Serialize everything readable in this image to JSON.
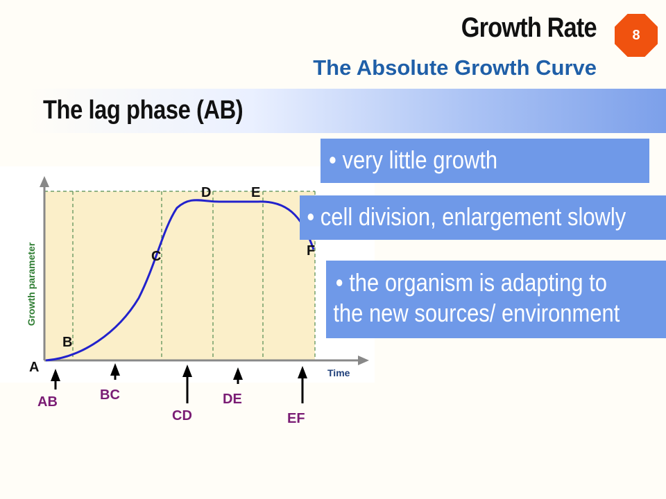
{
  "slide": {
    "title": "Growth Rate",
    "subtitle": "The Absolute Growth Curve",
    "page_number": "8",
    "badge_color": "#f0520f"
  },
  "section": {
    "heading": "The lag phase (AB)"
  },
  "bullets": [
    {
      "text": "• very little growth"
    },
    {
      "text": "• cell division, enlargement slowly"
    },
    {
      "lines": [
        "• the organism is adapting to",
        "the new sources/ environment"
      ]
    }
  ],
  "diagram": {
    "y_axis_label": "Growth parameter",
    "x_axis_label": "Time",
    "points": [
      "A",
      "B",
      "C",
      "D",
      "E",
      "F"
    ],
    "phases": [
      "AB",
      "BC",
      "CD",
      "DE",
      "EF"
    ],
    "curve_color": "#2222cc",
    "phase_label_color": "#7a1c74"
  }
}
